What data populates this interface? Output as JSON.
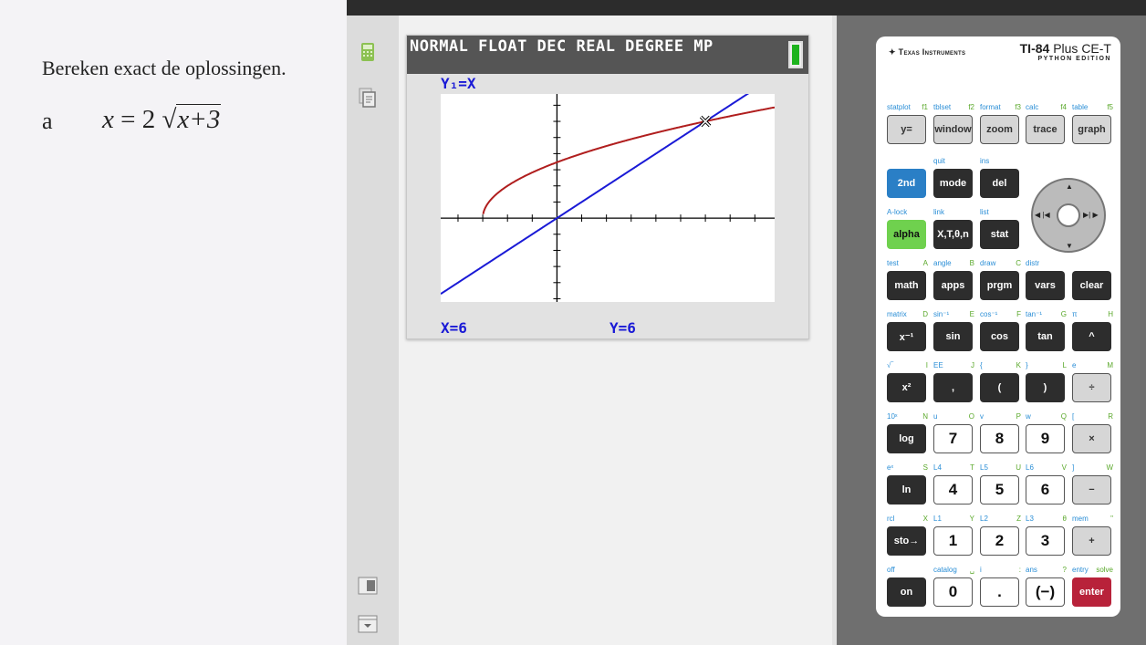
{
  "document": {
    "instruction": "Bereken exact de oplossingen.",
    "item_label": "a",
    "equation_lhs": "x",
    "equation_eq": "=",
    "equation_coef": "2",
    "equation_radicand": "x+3",
    "sqrt_symbol": "√"
  },
  "sidebar": {
    "icons": [
      "calculator-icon",
      "documents-icon",
      "keypad-layout-icon",
      "collapse-icon"
    ]
  },
  "screen": {
    "status_text": "NORMAL FLOAT DEC REAL DEGREE MP",
    "function_label": "Y₁=X",
    "x_readout": "X=6",
    "y_readout": "Y=6",
    "battery_level": 1.0
  },
  "chart_data": {
    "type": "line",
    "xlim": [
      -4.7,
      8.8
    ],
    "ylim": [
      -5.2,
      7.7
    ],
    "xscl": 1,
    "yscl": 1,
    "grid": false,
    "series": [
      {
        "expression": "Y1=X",
        "color": "#1a1ad6"
      },
      {
        "expression": "2√(X+3)",
        "color": "#b01e1e"
      }
    ],
    "trace_point": [
      6,
      6
    ]
  },
  "calculator": {
    "brand": "Texas Instruments",
    "model_main": "TI-84",
    "model_rest": " Plus CE-T",
    "edition": "PYTHON EDITION",
    "dpad_labels": {
      "up": "▲",
      "down": "▼",
      "left": "◀ |◀",
      "right": "▶| ▶"
    },
    "rows": [
      [
        {
          "k": "y=",
          "s": "statplot",
          "a": "f1",
          "c": "light"
        },
        {
          "k": "window",
          "s": "tblset",
          "a": "f2",
          "c": "light"
        },
        {
          "k": "zoom",
          "s": "format",
          "a": "f3",
          "c": "light"
        },
        {
          "k": "trace",
          "s": "calc",
          "a": "f4",
          "c": "light"
        },
        {
          "k": "graph",
          "s": "table",
          "a": "f5",
          "c": "light"
        }
      ],
      [
        {
          "k": "2nd",
          "s": "",
          "a": "",
          "c": "blue"
        },
        {
          "k": "mode",
          "s": "quit",
          "a": "",
          "c": "dark"
        },
        {
          "k": "del",
          "s": "ins",
          "a": "",
          "c": "dark"
        }
      ],
      [
        {
          "k": "alpha",
          "s": "A-lock",
          "a": "",
          "c": "green"
        },
        {
          "k": "X,T,θ,n",
          "s": "link",
          "a": "",
          "c": "dark"
        },
        {
          "k": "stat",
          "s": "list",
          "a": "",
          "c": "dark"
        }
      ],
      [
        {
          "k": "math",
          "s": "test",
          "a": "A",
          "c": "dark"
        },
        {
          "k": "apps",
          "s": "angle",
          "a": "B",
          "c": "dark"
        },
        {
          "k": "prgm",
          "s": "draw",
          "a": "C",
          "c": "dark"
        },
        {
          "k": "vars",
          "s": "distr",
          "a": "",
          "c": "dark"
        },
        {
          "k": "clear",
          "s": "",
          "a": "",
          "c": "dark"
        }
      ],
      [
        {
          "k": "x⁻¹",
          "s": "matrix",
          "a": "D",
          "c": "dark"
        },
        {
          "k": "sin",
          "s": "sin⁻¹",
          "a": "E",
          "c": "dark"
        },
        {
          "k": "cos",
          "s": "cos⁻¹",
          "a": "F",
          "c": "dark"
        },
        {
          "k": "tan",
          "s": "tan⁻¹",
          "a": "G",
          "c": "dark"
        },
        {
          "k": "^",
          "s": "π",
          "a": "H",
          "c": "dark"
        }
      ],
      [
        {
          "k": "x²",
          "s": "√‾",
          "a": "I",
          "c": "dark"
        },
        {
          "k": ",",
          "s": "EE",
          "a": "J",
          "c": "dark"
        },
        {
          "k": "(",
          "s": "{",
          "a": "K",
          "c": "dark"
        },
        {
          "k": ")",
          "s": "}",
          "a": "L",
          "c": "dark"
        },
        {
          "k": "÷",
          "s": "e",
          "a": "M",
          "c": "light"
        }
      ],
      [
        {
          "k": "log",
          "s": "10ˣ",
          "a": "N",
          "c": "dark"
        },
        {
          "k": "7",
          "s": "u",
          "a": "O",
          "c": "white"
        },
        {
          "k": "8",
          "s": "v",
          "a": "P",
          "c": "white"
        },
        {
          "k": "9",
          "s": "w",
          "a": "Q",
          "c": "white"
        },
        {
          "k": "×",
          "s": "[",
          "a": "R",
          "c": "light"
        }
      ],
      [
        {
          "k": "ln",
          "s": "eˣ",
          "a": "S",
          "c": "dark"
        },
        {
          "k": "4",
          "s": "L4",
          "a": "T",
          "c": "white"
        },
        {
          "k": "5",
          "s": "L5",
          "a": "U",
          "c": "white"
        },
        {
          "k": "6",
          "s": "L6",
          "a": "V",
          "c": "white"
        },
        {
          "k": "−",
          "s": "]",
          "a": "W",
          "c": "light"
        }
      ],
      [
        {
          "k": "sto→",
          "s": "rcl",
          "a": "X",
          "c": "dark"
        },
        {
          "k": "1",
          "s": "L1",
          "a": "Y",
          "c": "white"
        },
        {
          "k": "2",
          "s": "L2",
          "a": "Z",
          "c": "white"
        },
        {
          "k": "3",
          "s": "L3",
          "a": "θ",
          "c": "white"
        },
        {
          "k": "+",
          "s": "mem",
          "a": "\"",
          "c": "light"
        }
      ],
      [
        {
          "k": "on",
          "s": "off",
          "a": "",
          "c": "dark"
        },
        {
          "k": "0",
          "s": "catalog",
          "a": "␣",
          "c": "white"
        },
        {
          "k": ".",
          "s": "i",
          "a": ":",
          "c": "white"
        },
        {
          "k": "(−)",
          "s": "ans",
          "a": "?",
          "c": "white"
        },
        {
          "k": "enter",
          "s": "entry",
          "a": "solve",
          "c": "red"
        }
      ]
    ]
  }
}
